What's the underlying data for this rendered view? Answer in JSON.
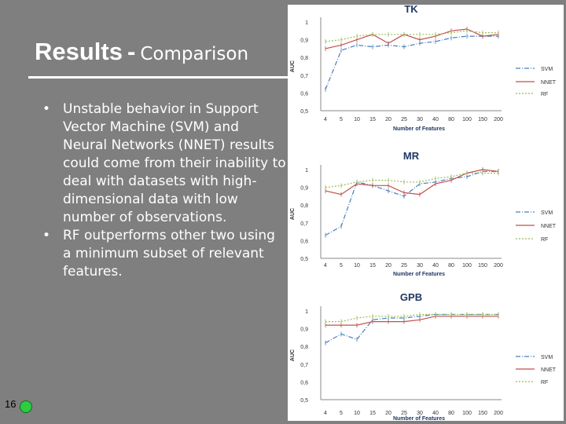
{
  "slide": {
    "title": "Results",
    "separator": "-",
    "subtitle": "Comparison",
    "bullets": [
      "Unstable behavior in Support Vector Machine (SVM) and Neural Networks (NNET) results could come from their inability to deal with datasets with high-dimensional data with low number of observations.",
      "RF outperforms other two using a minimum subset of relevant features."
    ],
    "page_number": "16"
  },
  "chart_data": [
    {
      "type": "line",
      "title": "TK",
      "xlabel": "Number of Features",
      "ylabel": "AUC",
      "categories": [
        "4",
        "5",
        "10",
        "15",
        "20",
        "25",
        "30",
        "40",
        "80",
        "100",
        "150",
        "200"
      ],
      "yticks": [
        "0,5",
        "0,6",
        "0,7",
        "0,8",
        "0,9",
        "1"
      ],
      "ylim": [
        0.5,
        1.0
      ],
      "legend": "right",
      "grid": false,
      "series": [
        {
          "name": "SVM",
          "color": "#4a7ebb",
          "dash": "dashdot",
          "values": [
            0.62,
            0.84,
            0.87,
            0.86,
            0.87,
            0.86,
            0.88,
            0.89,
            0.91,
            0.92,
            0.92,
            0.92
          ]
        },
        {
          "name": "NNET",
          "color": "#c0504d",
          "dash": "solid",
          "values": [
            0.85,
            0.87,
            0.9,
            0.93,
            0.88,
            0.93,
            0.9,
            0.92,
            0.95,
            0.96,
            0.92,
            0.93
          ]
        },
        {
          "name": "RF",
          "color": "#9bbb59",
          "dash": "dotted",
          "values": [
            0.89,
            0.9,
            0.92,
            0.93,
            0.93,
            0.93,
            0.93,
            0.93,
            0.94,
            0.95,
            0.94,
            0.94
          ]
        }
      ]
    },
    {
      "type": "line",
      "title": "MR",
      "xlabel": "Number of Features",
      "ylabel": "AUC",
      "categories": [
        "4",
        "5",
        "10",
        "15",
        "20",
        "25",
        "30",
        "40",
        "80",
        "100",
        "150",
        "200"
      ],
      "yticks": [
        "0,5",
        "0,6",
        "0,7",
        "0,8",
        "0,9",
        "1"
      ],
      "ylim": [
        0.5,
        1.0
      ],
      "legend": "right",
      "grid": false,
      "series": [
        {
          "name": "SVM",
          "color": "#4a7ebb",
          "dash": "dashdot",
          "values": [
            0.63,
            0.68,
            0.93,
            0.91,
            0.88,
            0.85,
            0.92,
            0.93,
            0.95,
            0.96,
            0.99,
            0.99
          ]
        },
        {
          "name": "NNET",
          "color": "#c0504d",
          "dash": "solid",
          "values": [
            0.88,
            0.86,
            0.92,
            0.91,
            0.91,
            0.87,
            0.86,
            0.92,
            0.94,
            0.98,
            1.0,
            0.99
          ]
        },
        {
          "name": "RF",
          "color": "#9bbb59",
          "dash": "dotted",
          "values": [
            0.9,
            0.91,
            0.93,
            0.94,
            0.94,
            0.93,
            0.93,
            0.95,
            0.96,
            0.98,
            0.98,
            0.98
          ]
        }
      ]
    },
    {
      "type": "line",
      "title": "GPB",
      "xlabel": "Number of Features",
      "ylabel": "AUC",
      "categories": [
        "4",
        "5",
        "10",
        "15",
        "20",
        "25",
        "30",
        "40",
        "80",
        "100",
        "150",
        "200"
      ],
      "yticks": [
        "0,5",
        "0,6",
        "0,7",
        "0,8",
        "0,9",
        "1"
      ],
      "ylim": [
        0.5,
        1.0
      ],
      "legend": "right",
      "grid": false,
      "series": [
        {
          "name": "SVM",
          "color": "#4a7ebb",
          "dash": "dashdot",
          "values": [
            0.82,
            0.87,
            0.84,
            0.95,
            0.96,
            0.96,
            0.97,
            0.98,
            0.98,
            0.98,
            0.98,
            0.98
          ]
        },
        {
          "name": "NNET",
          "color": "#c0504d",
          "dash": "solid",
          "values": [
            0.92,
            0.92,
            0.92,
            0.94,
            0.94,
            0.94,
            0.95,
            0.97,
            0.97,
            0.97,
            0.97,
            0.97
          ]
        },
        {
          "name": "RF",
          "color": "#9bbb59",
          "dash": "dotted",
          "values": [
            0.94,
            0.94,
            0.96,
            0.97,
            0.97,
            0.97,
            0.98,
            0.98,
            0.98,
            0.98,
            0.98,
            0.98
          ]
        }
      ]
    }
  ]
}
